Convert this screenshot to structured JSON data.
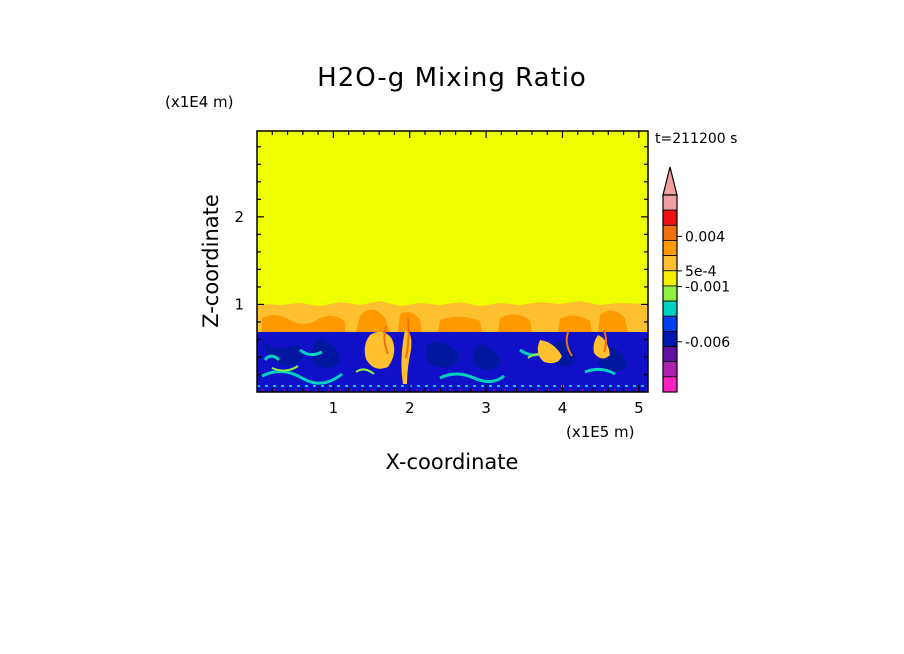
{
  "chart_data": {
    "type": "heatmap",
    "title": "H2O-g Mixing Ratio",
    "xlabel": "X-coordinate",
    "ylabel": "Z-coordinate",
    "x_scale_label": "(x1E5 m)",
    "y_scale_label": "(x1E4 m)",
    "time_label": "t=211200 s",
    "xlim": [
      0,
      5.12
    ],
    "ylim": [
      0,
      2.98
    ],
    "x_ticks": [
      "1",
      "2",
      "3",
      "4",
      "5"
    ],
    "y_ticks": [
      "1",
      "2"
    ],
    "colorbar": {
      "levels_top_to_bottom": [
        "#f0a0a0",
        "#ee1111",
        "#f07010",
        "#ff9900",
        "#ffc030",
        "#f4f000",
        "#90f040",
        "#00d0c0",
        "#0040f0",
        "#0018b0",
        "#6010a0",
        "#b020b0",
        "#ff20c0"
      ],
      "labels": [
        "0.004",
        "5e-4",
        "-0.001",
        "-0.006"
      ]
    },
    "layers": {
      "upper_layer_color": "#eeff00",
      "transition_layer_color": "#ffc030",
      "boundary_layer_color": "#1010c8",
      "boundary_layer_top_z": 0.69,
      "transition_layer_top_z": 1.02
    }
  }
}
